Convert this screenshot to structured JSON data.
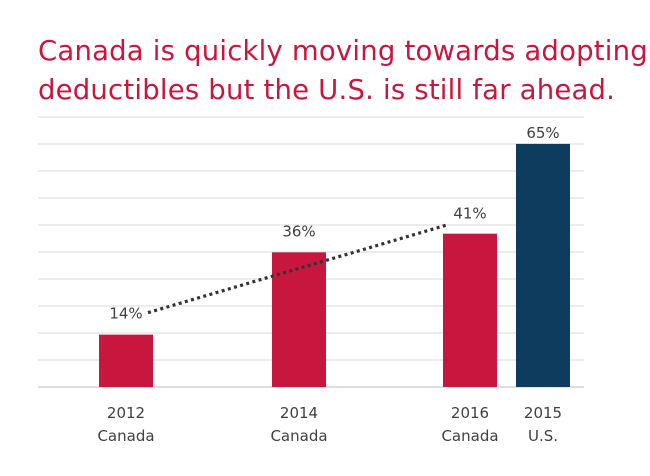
{
  "title": {
    "line1": "Canada is quickly moving towards adopting",
    "line2": "deductibles but the U.S. is still far ahead."
  },
  "colors": {
    "canada": "#c8173f",
    "us": "#0d3c5e",
    "title": "#c8173f",
    "trend": "#333333"
  },
  "chart_data": {
    "type": "bar",
    "title": "Canada is quickly moving towards adopting deductibles but the U.S. is still far ahead.",
    "xlabel": "",
    "ylabel": "",
    "ylim": [
      0,
      90
    ],
    "grid": true,
    "categories": [
      {
        "year": "2012",
        "country": "Canada"
      },
      {
        "year": "2014",
        "country": "Canada"
      },
      {
        "year": "2016",
        "country": "Canada"
      },
      {
        "year": "2015",
        "country": "U.S."
      }
    ],
    "values": [
      14,
      36,
      41,
      65
    ],
    "value_labels": [
      "14%",
      "36%",
      "41%",
      "65%"
    ],
    "bar_colors": [
      "#c8173f",
      "#c8173f",
      "#c8173f",
      "#0d3c5e"
    ],
    "trend_line": {
      "from_category": 0,
      "to_category": 2,
      "style": "dotted"
    }
  }
}
